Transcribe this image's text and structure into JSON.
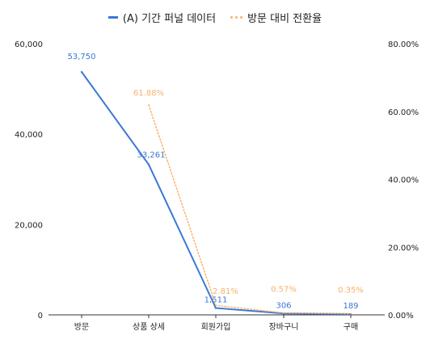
{
  "chart_data": {
    "type": "line",
    "categories": [
      "방문",
      "상품 상세",
      "회원가입",
      "장바구니",
      "구매"
    ],
    "series": [
      {
        "name": "(A) 기간 퍼널 데이터",
        "axis": "left",
        "color": "#3a78d6",
        "values": [
          53750,
          33261,
          1511,
          306,
          189
        ],
        "labels": [
          "53,750",
          "33,261",
          "1,511",
          "306",
          "189"
        ]
      },
      {
        "name": "방문 대비 전환율",
        "axis": "right",
        "color": "#f6b26b",
        "values": [
          null,
          61.88,
          2.81,
          0.57,
          0.35
        ],
        "labels": [
          "",
          "61.88%",
          "2.81%",
          "0.57%",
          "0.35%"
        ]
      }
    ],
    "left_axis": {
      "min": 0,
      "max": 60000,
      "ticks": [
        "0",
        "20,000",
        "40,000",
        "60,000"
      ],
      "tick_values": [
        0,
        20000,
        40000,
        60000
      ]
    },
    "right_axis": {
      "min": 0,
      "max": 80,
      "ticks": [
        "0.00%",
        "20.00%",
        "40.00%",
        "60.00%",
        "80.00%"
      ],
      "tick_values": [
        0,
        20,
        40,
        60,
        80
      ]
    },
    "legend_position": "top",
    "grid": false
  }
}
